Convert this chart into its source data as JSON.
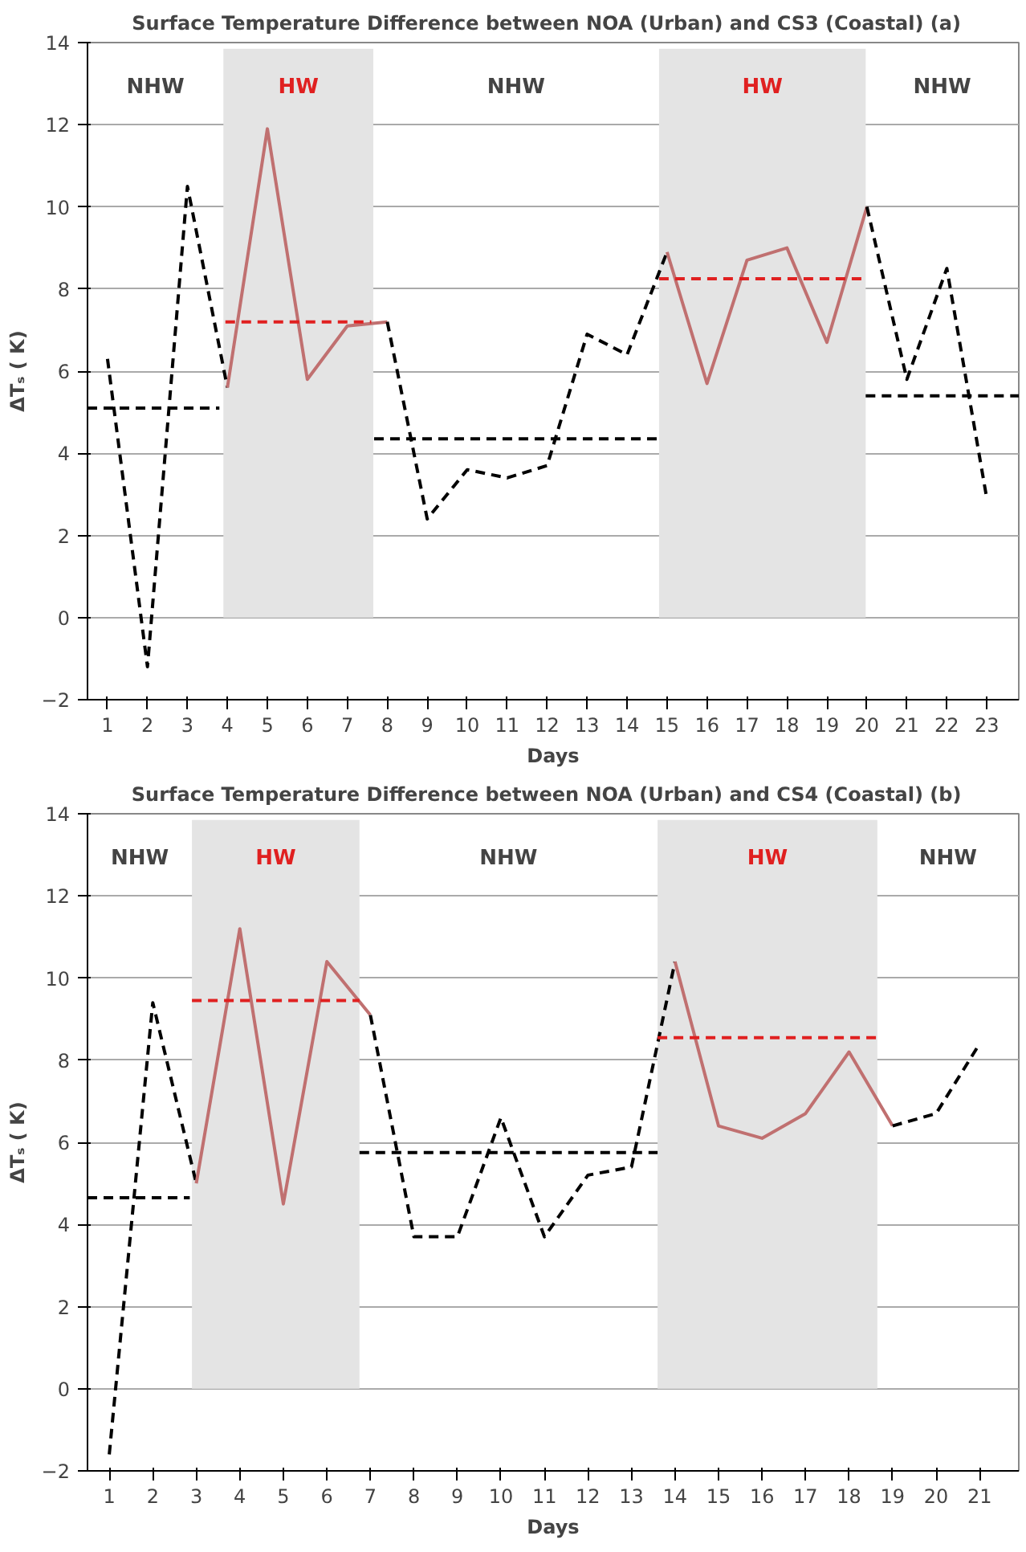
{
  "chart_data": [
    {
      "type": "line",
      "title": "Surface Temperature Difference between NOA (Urban) and CS3 (Coastal)   (a)",
      "xlabel": "Days",
      "ylabel": "ΔTₛ ( K)",
      "xlim": [
        0.5,
        23.8
      ],
      "xticks": [
        1,
        2,
        3,
        4,
        5,
        6,
        7,
        8,
        9,
        10,
        11,
        12,
        13,
        14,
        15,
        16,
        17,
        18,
        19,
        20,
        21,
        22,
        23
      ],
      "ylim": [
        -2,
        14
      ],
      "yticks": [
        -2,
        0,
        2,
        4,
        6,
        8,
        10,
        12,
        14
      ],
      "grid": "y",
      "bands": [
        {
          "axis": "x",
          "from": 3.9,
          "to": 7.65,
          "label": "HW",
          "color": "#e4e4e4"
        },
        {
          "axis": "x",
          "from": 14.8,
          "to": 19.97,
          "label": "HW",
          "color": "#e4e4e4"
        }
      ],
      "annotations": [
        "NHW",
        "NHW",
        "NHW"
      ],
      "series": [
        {
          "color": "#000000",
          "line_style": "dashed",
          "x": [
            1,
            2,
            3,
            4
          ],
          "values": [
            6.3,
            -1.2,
            10.5,
            5.6
          ]
        },
        {
          "color": "#c07070",
          "line_style": "solid",
          "x": [
            4,
            5,
            6,
            7,
            8
          ],
          "values": [
            5.6,
            11.9,
            5.8,
            7.1,
            7.2
          ]
        },
        {
          "color": "#000000",
          "line_style": "dashed",
          "x": [
            8,
            9,
            10,
            11,
            12,
            13,
            14,
            15
          ],
          "values": [
            7.2,
            2.4,
            3.6,
            3.4,
            3.7,
            6.9,
            6.4,
            8.9
          ]
        },
        {
          "color": "#c07070",
          "line_style": "solid",
          "x": [
            15,
            16,
            17,
            18,
            19,
            20
          ],
          "values": [
            8.9,
            5.7,
            8.7,
            9.0,
            6.7,
            10.0
          ]
        },
        {
          "color": "#000000",
          "line_style": "dashed",
          "x": [
            20,
            21,
            22,
            23
          ],
          "values": [
            10.0,
            5.8,
            8.5,
            2.9
          ]
        },
        {
          "color": "#000000",
          "line_style": "dashed",
          "x": [
            0.5,
            3.8
          ],
          "values": [
            5.1,
            5.1
          ]
        },
        {
          "color": "#e02020",
          "line_style": "dashed",
          "x": [
            3.95,
            7.6
          ],
          "values": [
            7.2,
            7.2
          ]
        },
        {
          "color": "#000000",
          "line_style": "dashed",
          "x": [
            7.67,
            14.8
          ],
          "values": [
            4.35,
            4.35
          ]
        },
        {
          "color": "#e02020",
          "line_style": "dashed",
          "x": [
            14.8,
            19.95
          ],
          "values": [
            8.25,
            8.25
          ]
        },
        {
          "color": "#000000",
          "line_style": "dashed",
          "x": [
            19.97,
            23.8
          ],
          "values": [
            5.4,
            5.4
          ]
        }
      ]
    },
    {
      "type": "line",
      "title": "Surface Temperature Difference between NOA (Urban) and CS4 (Coastal)   (b)",
      "xlabel": "Days",
      "ylabel": "ΔTₛ ( K)",
      "xlim": [
        0.5,
        21.9
      ],
      "xticks": [
        1,
        2,
        3,
        4,
        5,
        6,
        7,
        8,
        9,
        10,
        11,
        12,
        13,
        14,
        15,
        16,
        17,
        18,
        19,
        20,
        21
      ],
      "ylim": [
        -2,
        14
      ],
      "yticks": [
        -2,
        0,
        2,
        4,
        6,
        8,
        10,
        12,
        14
      ],
      "grid": "y",
      "bands": [
        {
          "axis": "x",
          "from": 2.9,
          "to": 6.75,
          "label": "HW",
          "color": "#e4e4e4"
        },
        {
          "axis": "x",
          "from": 13.6,
          "to": 18.65,
          "label": "HW",
          "color": "#e4e4e4"
        }
      ],
      "annotations": [
        "NHW",
        "NHW",
        "NHW"
      ],
      "series": [
        {
          "color": "#000000",
          "line_style": "dashed",
          "x": [
            1,
            2,
            3
          ],
          "values": [
            -1.6,
            9.4,
            5.0
          ]
        },
        {
          "color": "#c07070",
          "line_style": "solid",
          "x": [
            3,
            4,
            5,
            6,
            7
          ],
          "values": [
            5.0,
            11.2,
            4.5,
            10.4,
            9.1
          ]
        },
        {
          "color": "#000000",
          "line_style": "dashed",
          "x": [
            7,
            8,
            9,
            10,
            11,
            12,
            13,
            14
          ],
          "values": [
            9.1,
            3.7,
            3.7,
            6.6,
            3.7,
            5.2,
            5.4,
            10.4
          ]
        },
        {
          "color": "#c07070",
          "line_style": "solid",
          "x": [
            14,
            15,
            16,
            17,
            18,
            19
          ],
          "values": [
            10.4,
            6.4,
            6.1,
            6.7,
            8.2,
            6.4
          ]
        },
        {
          "color": "#000000",
          "line_style": "dashed",
          "x": [
            19,
            20,
            21
          ],
          "values": [
            6.4,
            6.7,
            8.4
          ]
        },
        {
          "color": "#000000",
          "line_style": "dashed",
          "x": [
            0.5,
            2.85
          ],
          "values": [
            4.65,
            4.65
          ]
        },
        {
          "color": "#e02020",
          "line_style": "dashed",
          "x": [
            2.9,
            6.75
          ],
          "values": [
            9.45,
            9.45
          ]
        },
        {
          "color": "#000000",
          "line_style": "dashed",
          "x": [
            6.75,
            13.6
          ],
          "values": [
            5.75,
            5.75
          ]
        },
        {
          "color": "#e02020",
          "line_style": "dashed",
          "x": [
            13.6,
            18.65
          ],
          "values": [
            8.55,
            8.55
          ]
        }
      ]
    }
  ]
}
